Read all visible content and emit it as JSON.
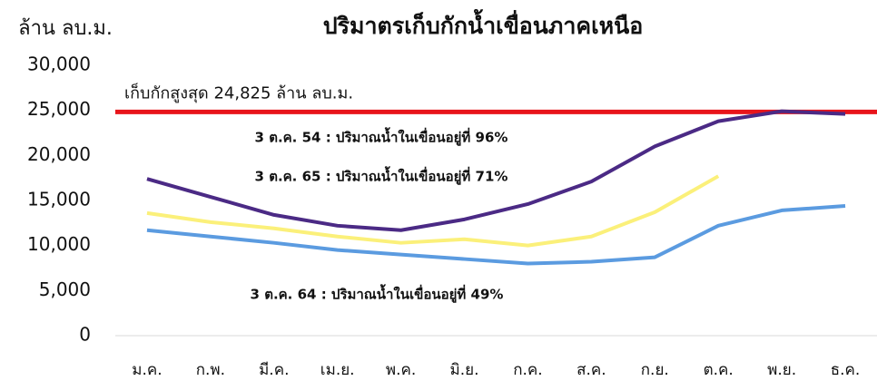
{
  "chart_data": {
    "type": "line",
    "title": "ปริมาตรเก็บกักน้ำเขื่อนภาคเหนือ",
    "y_axis_label": "ล้าน ลบ.ม.",
    "categories": [
      "ม.ค.",
      "ก.พ.",
      "มี.ค.",
      "เม.ย.",
      "พ.ค.",
      "มิ.ย.",
      "ก.ค.",
      "ส.ค.",
      "ก.ย.",
      "ต.ค.",
      "พ.ย.",
      "ธ.ค."
    ],
    "series": [
      {
        "name": "3 ต.ค. 54 : ปริมาณน้ำในเขื่อนอยู่ที่ 96%",
        "color": "#4b2a85",
        "values": [
          17400,
          15400,
          13400,
          12200,
          11700,
          12900,
          14600,
          17100,
          21000,
          23800,
          24900,
          24600
        ]
      },
      {
        "name": "3 ต.ค. 65 : ปริมาณน้ำในเขื่อนอยู่ที่ 71%",
        "color": "#fbf07a",
        "values": [
          13600,
          12600,
          11900,
          11000,
          10300,
          10700,
          10000,
          11000,
          13700,
          17700,
          null,
          null
        ]
      },
      {
        "name": "3 ต.ค. 64 : ปริมาณน้ำในเขื่อนอยู่ที่ 49%",
        "color": "#5b9be0",
        "values": [
          11700,
          11000,
          10300,
          9500,
          9000,
          8500,
          8000,
          8200,
          8700,
          12200,
          13900,
          14400
        ]
      }
    ],
    "reference_line": {
      "value": 24825,
      "label": "เก็บกักสูงสุด 24,825 ล้าน ลบ.ม.",
      "color": "#e8151b"
    },
    "ylim": [
      0,
      30000
    ],
    "yticks": [
      0,
      {
        "value": 5000,
        "label": "5,000"
      },
      {
        "value": 10000,
        "label": "10,000"
      },
      {
        "value": 15000,
        "label": "15,000"
      },
      {
        "value": 20000,
        "label": "20,000"
      },
      {
        "value": 25000,
        "label": "25,000"
      },
      {
        "value": 30000,
        "label": "30,000"
      }
    ],
    "grid": false
  }
}
